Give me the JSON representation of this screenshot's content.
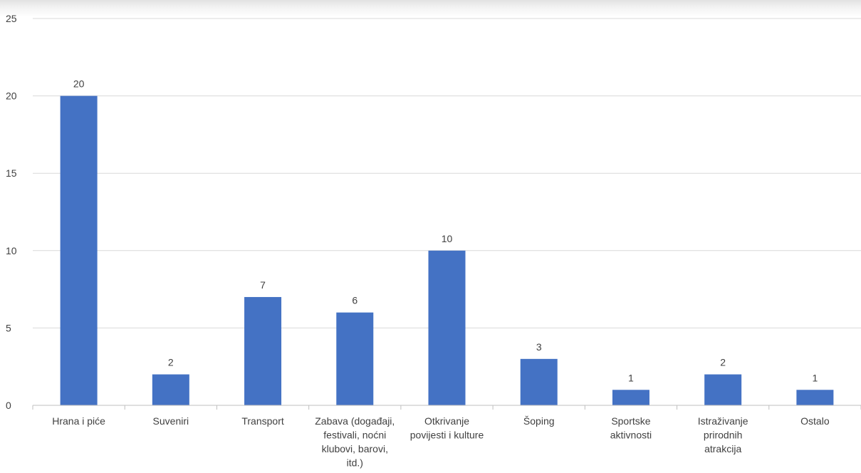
{
  "chart_data": {
    "type": "bar",
    "title": "",
    "xlabel": "",
    "ylabel": "",
    "categories": [
      "Hrana i piće",
      "Suveniri",
      "Transport",
      "Zabava (događaji, festivali, noćni klubovi, barovi, itd.)",
      "Otkrivanje povijesti i kulture",
      "Šoping",
      "Sportske aktivnosti",
      "Istraživanje prirodnih atrakcija",
      "Ostalo"
    ],
    "category_lines": [
      [
        "Hrana i piće"
      ],
      [
        "Suveniri"
      ],
      [
        "Transport"
      ],
      [
        "Zabava (događaji,",
        "festivali, noćni",
        "klubovi, barovi,",
        "itd.)"
      ],
      [
        "Otkrivanje",
        "povijesti i kulture"
      ],
      [
        "Šoping"
      ],
      [
        "Sportske",
        "aktivnosti"
      ],
      [
        "Istraživanje",
        "prirodnih",
        "atrakcija"
      ],
      [
        "Ostalo"
      ]
    ],
    "values": [
      20,
      2,
      7,
      6,
      10,
      3,
      1,
      2,
      1
    ],
    "ylim": [
      0,
      25
    ],
    "yticks": [
      0,
      5,
      10,
      15,
      20,
      25
    ],
    "grid": true,
    "legend": "none",
    "data_labels": true,
    "colors": {
      "bar": "#4472C4",
      "gridline": "#d9d9d9",
      "axis_line": "#bfbfbf",
      "text": "#404040"
    }
  }
}
